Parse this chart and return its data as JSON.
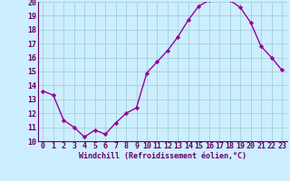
{
  "x": [
    0,
    1,
    2,
    3,
    4,
    5,
    6,
    7,
    8,
    9,
    10,
    11,
    12,
    13,
    14,
    15,
    16,
    17,
    18,
    19,
    20,
    21,
    22,
    23
  ],
  "y": [
    13.6,
    13.3,
    11.5,
    11.0,
    10.3,
    10.8,
    10.5,
    11.3,
    12.0,
    12.4,
    14.9,
    15.7,
    16.5,
    17.5,
    18.7,
    19.7,
    20.1,
    20.2,
    20.1,
    19.6,
    18.5,
    16.8,
    16.0,
    15.1
  ],
  "line_color": "#990099",
  "marker": "D",
  "marker_size": 2.2,
  "background_color": "#cceeff",
  "grid_color": "#99cccc",
  "xlabel": "Windchill (Refroidissement éolien,°C)",
  "xlabel_color": "#660066",
  "tick_color": "#660066",
  "spine_color": "#660066",
  "ylim": [
    10,
    20
  ],
  "xlim": [
    -0.5,
    23.5
  ],
  "yticks": [
    10,
    11,
    12,
    13,
    14,
    15,
    16,
    17,
    18,
    19,
    20
  ],
  "xticks": [
    0,
    1,
    2,
    3,
    4,
    5,
    6,
    7,
    8,
    9,
    10,
    11,
    12,
    13,
    14,
    15,
    16,
    17,
    18,
    19,
    20,
    21,
    22,
    23
  ],
  "tick_fontsize": 6.0,
  "xlabel_fontsize": 6.0,
  "linewidth": 1.0
}
